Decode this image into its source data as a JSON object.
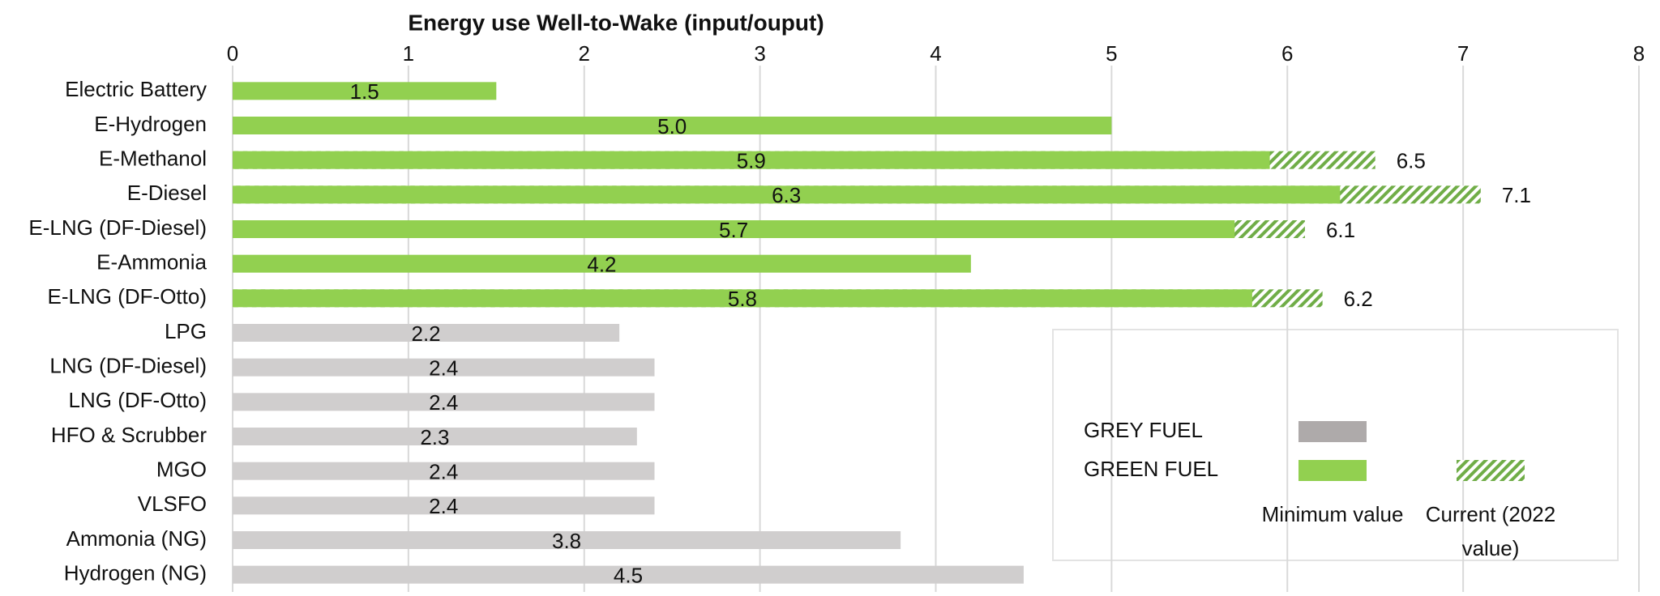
{
  "chart_data": {
    "type": "bar",
    "orientation": "horizontal",
    "title": "Energy use Well-to-Wake (input/ouput)",
    "categories": [
      "Electric Battery",
      "E-Hydrogen",
      "E-Methanol",
      "E-Diesel",
      "E-LNG (DF-Diesel)",
      "E-Ammonia",
      "E-LNG (DF-Otto)",
      "LPG",
      "LNG (DF-Diesel)",
      "LNG (DF-Otto)",
      "HFO & Scrubber",
      "MGO",
      "VLSFO",
      "Ammonia (NG)",
      "Hydrogen (NG)"
    ],
    "series": [
      {
        "name": "Minimum value",
        "colors": [
          "#92d050",
          "#92d050",
          "#92d050",
          "#92d050",
          "#92d050",
          "#92d050",
          "#92d050",
          "#d0cece",
          "#d0cece",
          "#d0cece",
          "#d0cece",
          "#d0cece",
          "#d0cece",
          "#d0cece",
          "#d0cece"
        ],
        "values": [
          1.5,
          5.0,
          5.9,
          6.3,
          5.7,
          4.2,
          5.8,
          2.2,
          2.4,
          2.4,
          2.3,
          2.4,
          2.4,
          3.8,
          4.5
        ],
        "value_labels": [
          "1.5",
          "5.0",
          "5.9",
          "6.3",
          "5.7",
          "4.2",
          "5.8",
          "2.2",
          "2.4",
          "2.4",
          "2.3",
          "2.4",
          "2.4",
          "3.8",
          "4.5"
        ]
      },
      {
        "name": "Current (2022 value)",
        "color": "#70ad47",
        "pattern": "hatch",
        "values": [
          null,
          null,
          6.5,
          7.1,
          6.1,
          null,
          6.2,
          null,
          null,
          null,
          null,
          null,
          null,
          null,
          null
        ]
      }
    ],
    "legend": {
      "position": "lower right",
      "rows": [
        {
          "label": "GREY FUEL",
          "color": "#aeaaaa",
          "patterns": [
            "solid"
          ]
        },
        {
          "label": "GREEN FUEL",
          "color": "#92d050",
          "patterns": [
            "solid",
            "hatch"
          ]
        }
      ]
    },
    "xlim": [
      0,
      8
    ],
    "xticks": [
      0,
      1,
      2,
      3,
      4,
      5,
      6,
      7,
      8
    ],
    "grid": true
  }
}
